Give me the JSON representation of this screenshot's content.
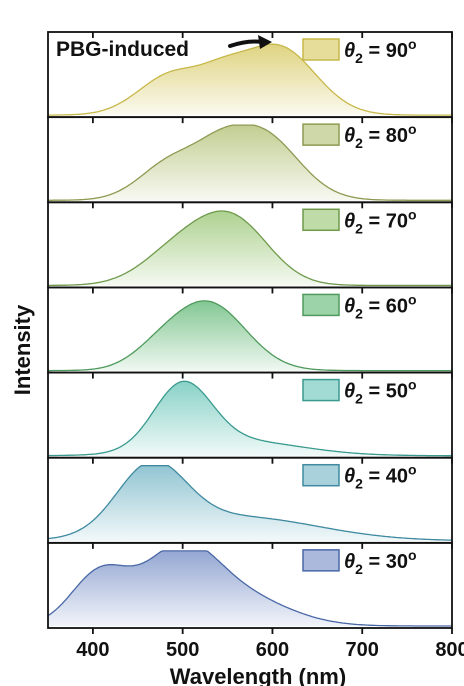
{
  "chart_data": {
    "type": "area",
    "layout": "stacked-panels",
    "xlabel": "Wavelength (nm)",
    "ylabel": "Intensity",
    "xlim": [
      350,
      800
    ],
    "xticks": [
      400,
      500,
      600,
      700,
      800
    ],
    "annotation": "PBG-induced",
    "legend_symbol": "θ",
    "legend_subscript": "2",
    "legend_eq": " = ",
    "legend_unit": "o",
    "panels": [
      {
        "theta": "90",
        "line_color": "#c7b84a",
        "fill_color": "#ddd17a",
        "peaks": [
          [
            490,
            0.55,
            38
          ],
          [
            605,
            0.92,
            42
          ],
          [
            545,
            0.25,
            25
          ]
        ]
      },
      {
        "theta": "80",
        "line_color": "#8e9a52",
        "fill_color": "#bfcb8c",
        "peaks": [
          [
            490,
            0.52,
            36
          ],
          [
            585,
            0.92,
            42
          ],
          [
            540,
            0.22,
            25
          ]
        ]
      },
      {
        "theta": "70",
        "line_color": "#6f9a4c",
        "fill_color": "#a9cf8a",
        "peaks": [
          [
            495,
            0.45,
            40
          ],
          [
            557,
            0.82,
            40
          ]
        ]
      },
      {
        "theta": "60",
        "line_color": "#4e9a5c",
        "fill_color": "#7cc48c",
        "peaks": [
          [
            528,
            0.9,
            42
          ],
          [
            470,
            0.16,
            30
          ]
        ]
      },
      {
        "theta": "50",
        "line_color": "#3a9a8e",
        "fill_color": "#82cfc4",
        "peaks": [
          [
            500,
            0.85,
            32
          ],
          [
            560,
            0.2,
            70
          ]
        ]
      },
      {
        "theta": "40",
        "line_color": "#3f8aa0",
        "fill_color": "#8cc2d0",
        "peaks": [
          [
            465,
            0.88,
            38
          ],
          [
            560,
            0.32,
            90
          ]
        ]
      },
      {
        "theta": "30",
        "line_color": "#4a68a6",
        "fill_color": "#8ea2d0",
        "peaks": [
          [
            408,
            0.7,
            32
          ],
          [
            496,
            0.9,
            40
          ],
          [
            560,
            0.4,
            55
          ]
        ]
      }
    ]
  }
}
